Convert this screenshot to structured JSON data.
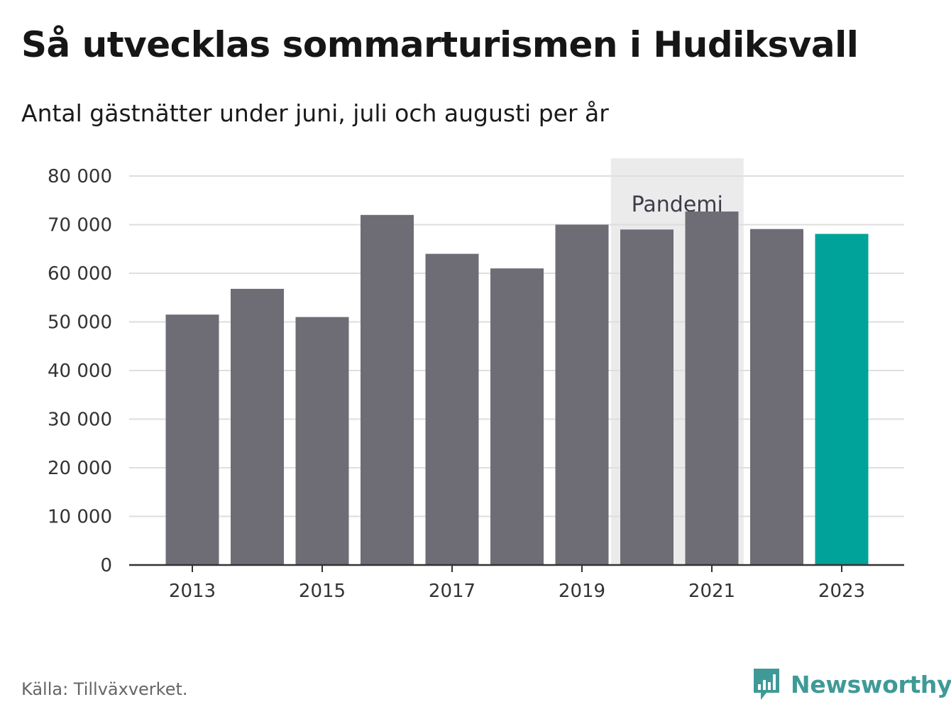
{
  "title": "Så utvecklas sommarturismen i Hudiksvall",
  "subtitle": "Antal gästnätter under juni, juli och augusti per år",
  "source": "Källa: Tillväxverket.",
  "brand": "Newsworthy",
  "colors": {
    "bar": "#6e6d75",
    "highlight": "#00a399",
    "band": "#ebebeb",
    "grid": "#dedede",
    "axis": "#333333"
  },
  "chart_data": {
    "type": "bar",
    "title": "Så utvecklas sommarturismen i Hudiksvall",
    "subtitle": "Antal gästnätter under juni, juli och augusti per år",
    "categories": [
      "2013",
      "2014",
      "2015",
      "2016",
      "2017",
      "2018",
      "2019",
      "2020",
      "2021",
      "2022",
      "2023"
    ],
    "values": [
      51500,
      56800,
      51000,
      72000,
      64000,
      61000,
      70000,
      69000,
      72700,
      69100,
      68100
    ],
    "x_tick_labels": [
      "2013",
      "2015",
      "2017",
      "2019",
      "2021",
      "2023"
    ],
    "y_ticks": [
      0,
      10000,
      20000,
      30000,
      40000,
      50000,
      60000,
      70000,
      80000
    ],
    "y_tick_labels": [
      "0",
      "10 000",
      "20 000",
      "30 000",
      "40 000",
      "50 000",
      "60 000",
      "70 000",
      "80 000"
    ],
    "ylim": [
      0,
      80000
    ],
    "highlighted_category": "2023",
    "grid": true,
    "annotation": {
      "text": "Pandemi",
      "from": "2020",
      "to": "2021"
    },
    "xlabel": "",
    "ylabel": ""
  }
}
